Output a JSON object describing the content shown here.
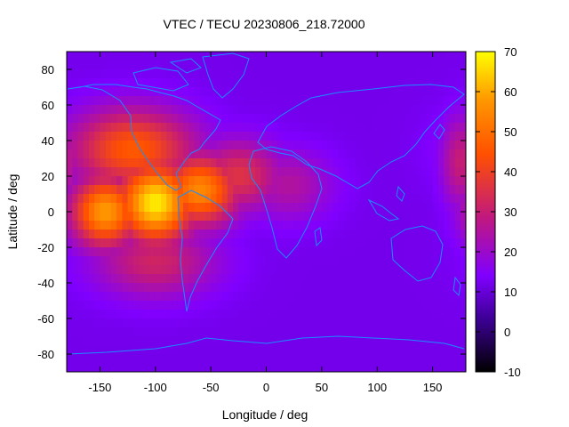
{
  "chart_data": {
    "type": "heatmap",
    "title": "VTEC / TECU 20230806_218.72000",
    "xlabel": "Longitude / deg",
    "ylabel": "Latitude / deg",
    "xlim": [
      -180,
      180
    ],
    "ylim": [
      -90,
      90
    ],
    "x_ticks": [
      "-150",
      "-100",
      "-50",
      "0",
      "50",
      "100",
      "150"
    ],
    "x_tick_values": [
      -150,
      -100,
      -50,
      0,
      50,
      100,
      150
    ],
    "y_ticks": [
      "80",
      "60",
      "40",
      "20",
      "0",
      "-20",
      "-40",
      "-60",
      "-80"
    ],
    "y_tick_values": [
      80,
      60,
      40,
      20,
      0,
      -20,
      -40,
      -60,
      -80
    ],
    "colorbar": {
      "range": [
        -10,
        70
      ],
      "ticks": [
        "70",
        "60",
        "50",
        "40",
        "30",
        "20",
        "10",
        "0",
        "-10"
      ],
      "tick_values": [
        70,
        60,
        50,
        40,
        30,
        20,
        10,
        0,
        -10
      ],
      "colormap": [
        "#000000",
        "#3a0090",
        "#8000ff",
        "#c01880",
        "#ff5000",
        "#ff9800",
        "#ffff00"
      ]
    },
    "grid": false,
    "overlay": "coastlines",
    "coastline_color": "#1a8cff",
    "tec_features": [
      {
        "lon": -100,
        "lat": 5,
        "value": 68,
        "sigma_lon": 25,
        "sigma_lat": 16
      },
      {
        "lon": -145,
        "lat": 0,
        "value": 58,
        "sigma_lon": 22,
        "sigma_lat": 14
      },
      {
        "lon": -60,
        "lat": 12,
        "value": 55,
        "sigma_lon": 25,
        "sigma_lat": 14
      },
      {
        "lon": -120,
        "lat": 35,
        "value": 46,
        "sigma_lon": 40,
        "sigma_lat": 16
      },
      {
        "lon": -25,
        "lat": 20,
        "value": 36,
        "sigma_lon": 28,
        "sigma_lat": 14
      },
      {
        "lon": 20,
        "lat": 15,
        "value": 25,
        "sigma_lon": 28,
        "sigma_lat": 14
      },
      {
        "lon": -100,
        "lat": -28,
        "value": 32,
        "sigma_lon": 38,
        "sigma_lat": 14
      },
      {
        "lon": 175,
        "lat": 28,
        "value": 30,
        "sigma_lon": 12,
        "sigma_lat": 18
      }
    ],
    "background_value": 12
  }
}
